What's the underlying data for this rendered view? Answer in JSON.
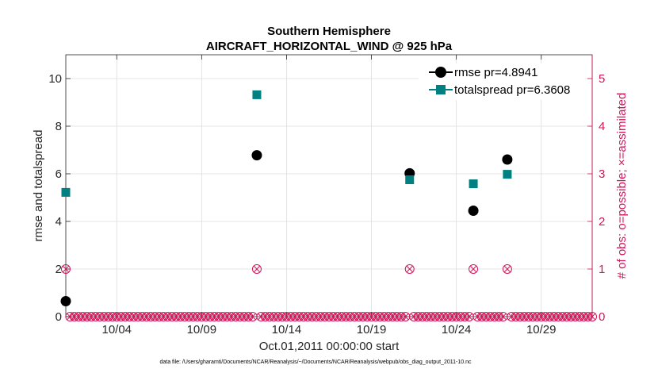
{
  "colors": {
    "rmse": "#000000",
    "totalspread": "#008080",
    "obs": "#d4145a",
    "grid": "#dddddd",
    "axis": "#262626"
  },
  "chart_data": {
    "type": "scatter",
    "title": "Southern Hemisphere",
    "subtitle": "AIRCRAFT_HORIZONTAL_WIND @ 925 hPa",
    "xlabel": "Oct.01,2011 00:00:00 start",
    "ylabel": "rmse and totalspread",
    "ylabel_right": "# of obs: o=possible; ×=assimilated",
    "footnote": "data file: /Users/gharamti/Documents/NCAR/Reanalysis/~/Documents/NCAR/Reanalysis/webpub/obs_diag_output_2011-10.nc",
    "xlim": [
      1,
      32
    ],
    "ylim": [
      0,
      11
    ],
    "ylim_right": [
      0,
      5.5
    ],
    "x_ticks": [
      4,
      9,
      14,
      19,
      24,
      29
    ],
    "x_tick_labels": [
      "10/04",
      "10/09",
      "10/14",
      "10/19",
      "10/24",
      "10/29"
    ],
    "y_ticks": [
      0,
      2,
      4,
      6,
      8,
      10
    ],
    "y_ticks_right": [
      0,
      1,
      2,
      3,
      4,
      5
    ],
    "grid": true,
    "legend_position": "top-right",
    "series": [
      {
        "name": "rmse pr=4.8941",
        "marker": "filled-circle",
        "points": [
          [
            1,
            0.65
          ],
          [
            12.25,
            6.78
          ],
          [
            21.25,
            6.02
          ],
          [
            25,
            4.45
          ],
          [
            27,
            6.6
          ]
        ]
      },
      {
        "name": "totalspread pr=6.3608",
        "marker": "filled-square",
        "points": [
          [
            1,
            5.22
          ],
          [
            12.25,
            9.32
          ],
          [
            21.25,
            5.75
          ],
          [
            25,
            5.58
          ],
          [
            27,
            5.98
          ]
        ]
      }
    ],
    "obs_counts": {
      "axis": "right",
      "marker": "circle-with-x",
      "nonzero_points": [
        [
          1,
          1
        ],
        [
          12.25,
          1
        ],
        [
          21.25,
          1
        ],
        [
          25,
          1
        ],
        [
          27,
          1
        ]
      ],
      "zero_start": 1.25,
      "zero_end": 32,
      "zero_step": 0.25
    }
  }
}
